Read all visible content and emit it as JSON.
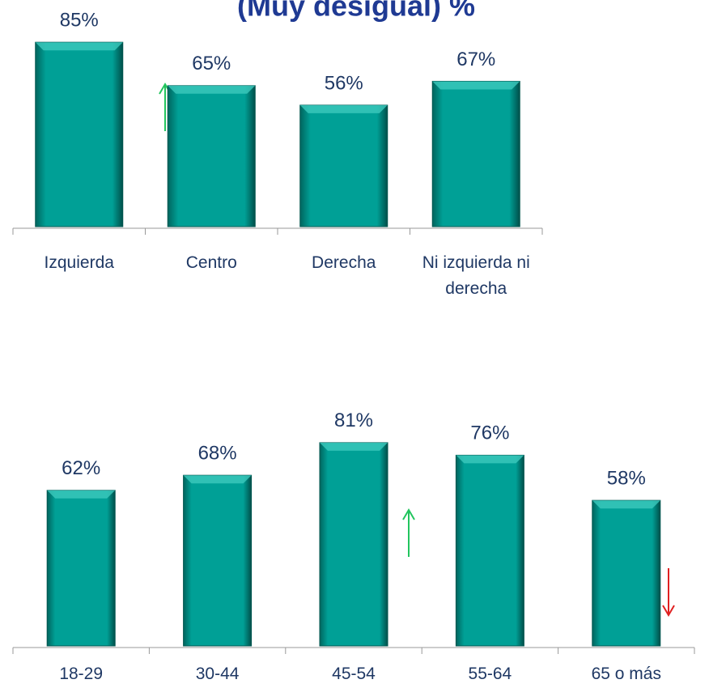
{
  "chart_data": [
    {
      "type": "bar",
      "title": "(Muy desigual) %",
      "categories": [
        "Izquierda",
        "Centro",
        "Derecha",
        "Ni izquierda ni derecha"
      ],
      "values": [
        85,
        65,
        56,
        67
      ],
      "value_labels": [
        "85%",
        "65%",
        "56%",
        "67%"
      ],
      "color": "#00a096",
      "ylim": [
        0,
        100
      ]
    },
    {
      "type": "bar",
      "categories": [
        "18-29",
        "30-44",
        "45-54",
        "55-64",
        "65 o más"
      ],
      "values": [
        62,
        68,
        81,
        76,
        58
      ],
      "value_labels": [
        "62%",
        "68%",
        "81%",
        "76%",
        "58%"
      ],
      "color": "#00a096",
      "ylim": [
        0,
        100
      ]
    }
  ]
}
